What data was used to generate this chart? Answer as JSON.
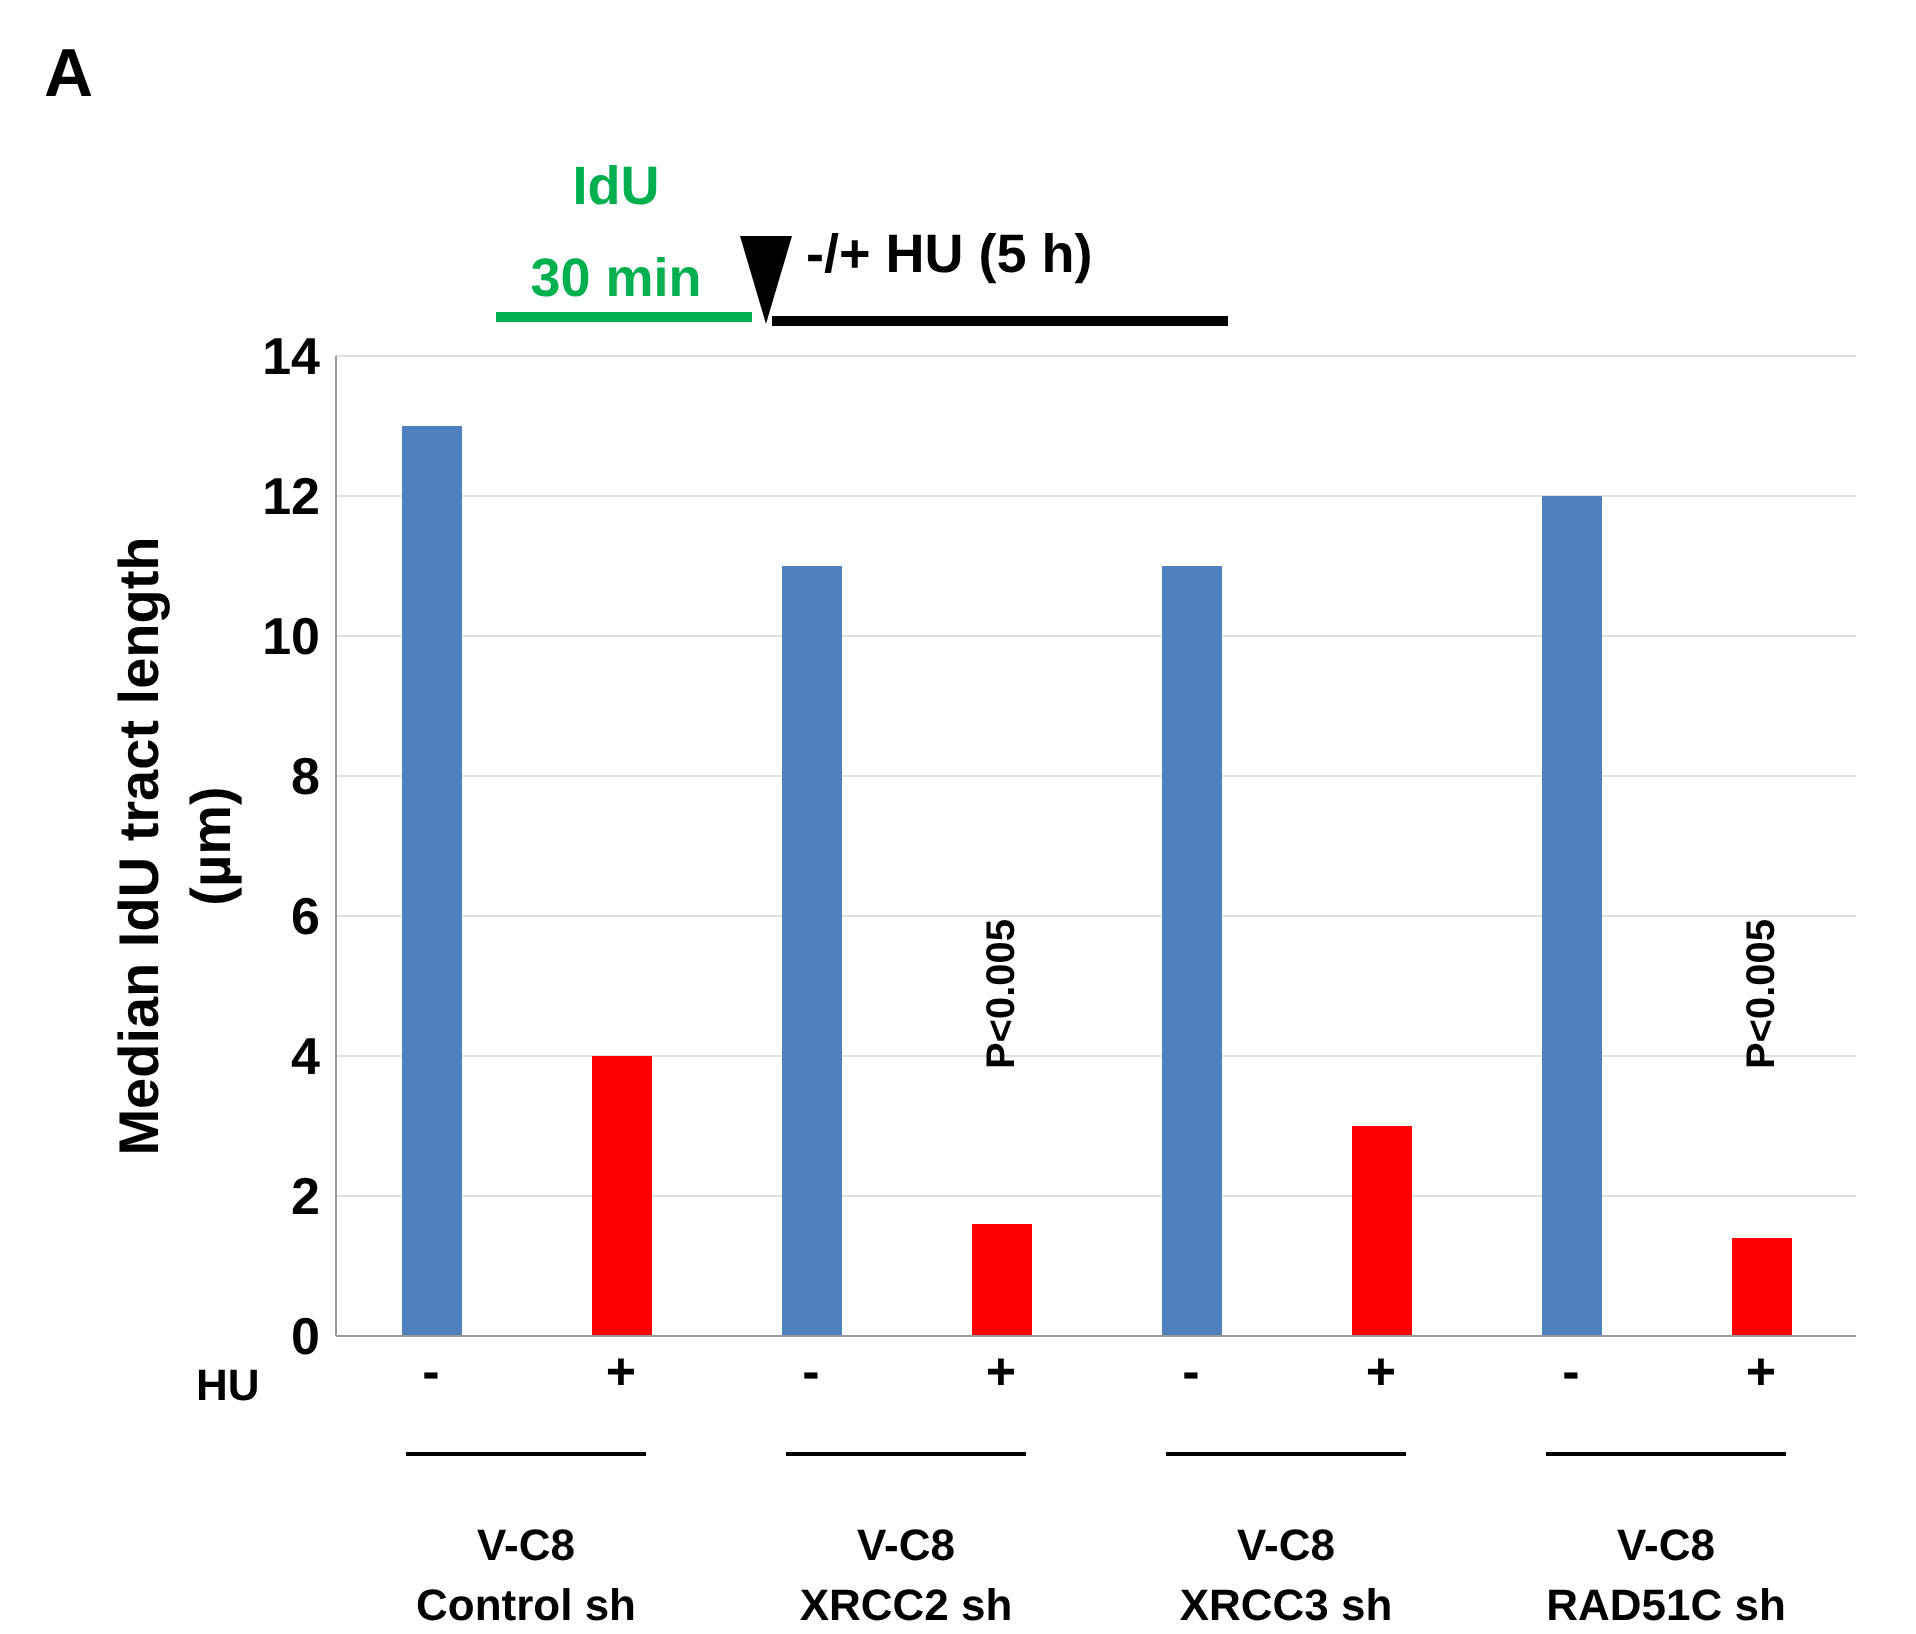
{
  "chart_data": {
    "type": "bar",
    "ylabel": "Median IdU tract length\n(µm)",
    "categories": [
      "-",
      "+",
      "-",
      "+",
      "-",
      "+",
      "-",
      "+"
    ],
    "values": [
      13,
      4.0,
      11,
      1.6,
      11,
      3.0,
      12,
      1.4
    ],
    "colors": [
      "#4f81bd",
      "#ff0000",
      "#4f81bd",
      "#ff0000",
      "#4f81bd",
      "#ff0000",
      "#4f81bd",
      "#ff0000"
    ],
    "ylim": [
      0,
      14
    ],
    "yticks": [
      0,
      2,
      4,
      6,
      8,
      10,
      12,
      14
    ],
    "grid": "y",
    "legend": false,
    "annotations": [
      "A",
      "IdU\n30 min",
      "-/+ HU (5 h)",
      "HU",
      "V-C8\nControl sh",
      "V-C8\nXRCC2 sh",
      "V-C8\nXRCC3 sh",
      "V-C8\nRAD51C sh",
      "P<0.005",
      "P<0.005"
    ]
  }
}
